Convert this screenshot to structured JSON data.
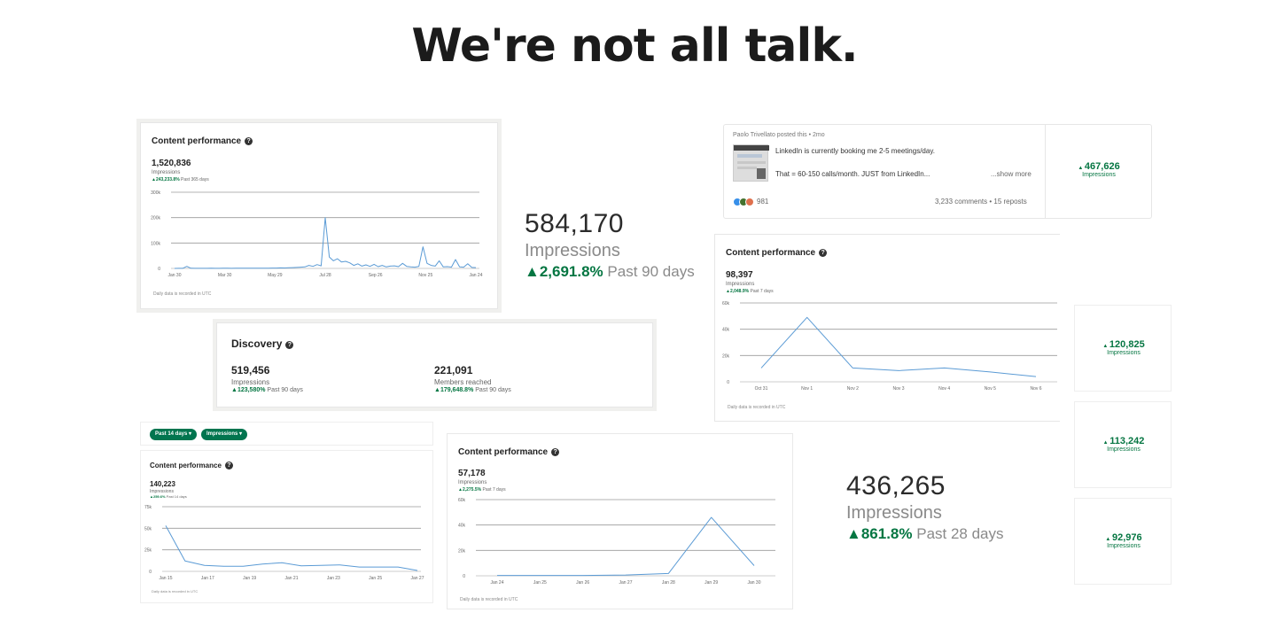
{
  "headline": "We're not all talk.",
  "card_a": {
    "title": "Content performance",
    "value": "1,520,836",
    "label": "Impressions",
    "delta": "243,233.8%",
    "period": "Past 365 days",
    "footnote": "Daily data is recorded in UTC"
  },
  "stat_a": {
    "value": "584,170",
    "label": "Impressions",
    "delta": "2,691.8%",
    "period": "Past 90 days"
  },
  "post": {
    "author_line": "Paolo Trivellato posted this • 2mo",
    "line1": "LinkedIn is currently booking me 2-5 meetings/day.",
    "line2": "That = 60-150 calls/month. JUST from LinkedIn...",
    "show_more": "...show more",
    "reactions": "981",
    "comments": "3,233 comments • 15 reposts",
    "impressions_value": "467,626",
    "impressions_label": "Impressions"
  },
  "discovery": {
    "title": "Discovery",
    "impressions_value": "519,456",
    "impressions_label": "Impressions",
    "impressions_delta": "123,580%",
    "impressions_period": "Past 90 days",
    "members_value": "221,091",
    "members_label": "Members reached",
    "members_delta": "179,648.8%",
    "members_period": "Past 90 days"
  },
  "card_b": {
    "title": "Content performance",
    "value": "98,397",
    "label": "Impressions",
    "delta": "2,048.9%",
    "period": "Past 7 days",
    "footnote": "Daily data is recorded in UTC"
  },
  "side_stats": [
    {
      "value": "120,825",
      "label": "Impressions"
    },
    {
      "value": "113,242",
      "label": "Impressions"
    },
    {
      "value": "92,976",
      "label": "Impressions"
    }
  ],
  "filters": {
    "range": "Past 14 days",
    "metric": "Impressions"
  },
  "card_c": {
    "title": "Content performance",
    "value": "140,223",
    "label": "Impressions",
    "delta": "259.6%",
    "period": "Past 14 days",
    "footnote": "Daily data is recorded in UTC"
  },
  "card_d": {
    "title": "Content performance",
    "value": "57,178",
    "label": "Impressions",
    "delta": "2,275.5%",
    "period": "Past 7 days",
    "footnote": "Daily data is recorded in UTC"
  },
  "stat_b": {
    "value": "436,265",
    "label": "Impressions",
    "delta": "861.8%",
    "period": "Past 28 days"
  },
  "colors": {
    "line": "#5b9bd5",
    "positive": "#057642",
    "pill": "#01754f"
  },
  "chart_data": [
    {
      "type": "line",
      "id": "chart_a",
      "yticks": [
        "0",
        "100k",
        "200k",
        "300k"
      ],
      "ylim": [
        0,
        300000
      ],
      "xticks": [
        "Jan 30",
        "Mar 30",
        "May 29",
        "Jul 28",
        "Sep 26",
        "Nov 25",
        "Jan 24"
      ],
      "values": [
        0,
        500,
        300,
        8000,
        600,
        400,
        300,
        500,
        400,
        600,
        500,
        400,
        700,
        600,
        500,
        800,
        700,
        600,
        900,
        800,
        1000,
        900,
        1200,
        1100,
        1500,
        1300,
        2000,
        1800,
        2500,
        3000,
        4000,
        5000,
        6000,
        12000,
        8000,
        15000,
        10000,
        200000,
        45000,
        30000,
        38000,
        25000,
        28000,
        22000,
        12000,
        18000,
        9000,
        14000,
        8000,
        16000,
        7000,
        12000,
        6000,
        9000,
        10000,
        7000,
        20000,
        8000,
        6000,
        5000,
        8000,
        85000,
        20000,
        12000,
        9000,
        30000,
        6000,
        7000,
        5000,
        35000,
        6000,
        5000,
        18000,
        4000,
        3000
      ]
    },
    {
      "type": "line",
      "id": "chart_b",
      "yticks": [
        "0",
        "20k",
        "40k",
        "60k"
      ],
      "ylim": [
        0,
        60000
      ],
      "categories": [
        "Oct 31",
        "Nov 1",
        "Nov 2",
        "Nov 3",
        "Nov 4",
        "Nov 5",
        "Nov 6"
      ],
      "values": [
        10500,
        49000,
        10500,
        8500,
        10500,
        7500,
        4000
      ]
    },
    {
      "type": "line",
      "id": "chart_c",
      "yticks": [
        "0",
        "25k",
        "50k",
        "75k"
      ],
      "ylim": [
        0,
        75000
      ],
      "xticks": [
        "Jan 15",
        "Jan 17",
        "Jan 19",
        "Jan 21",
        "Jan 23",
        "Jan 25",
        "Jan 27"
      ],
      "values": [
        53000,
        12000,
        7000,
        6000,
        6000,
        8500,
        10000,
        6500,
        7000,
        7500,
        5000,
        5000,
        5000,
        1000
      ]
    },
    {
      "type": "line",
      "id": "chart_d",
      "yticks": [
        "0",
        "20k",
        "40k",
        "60k"
      ],
      "ylim": [
        0,
        60000
      ],
      "categories": [
        "Jan 24",
        "Jan 25",
        "Jan 26",
        "Jan 27",
        "Jan 28",
        "Jan 29",
        "Jan 30"
      ],
      "values": [
        300,
        300,
        300,
        600,
        1800,
        46000,
        8000
      ]
    }
  ]
}
